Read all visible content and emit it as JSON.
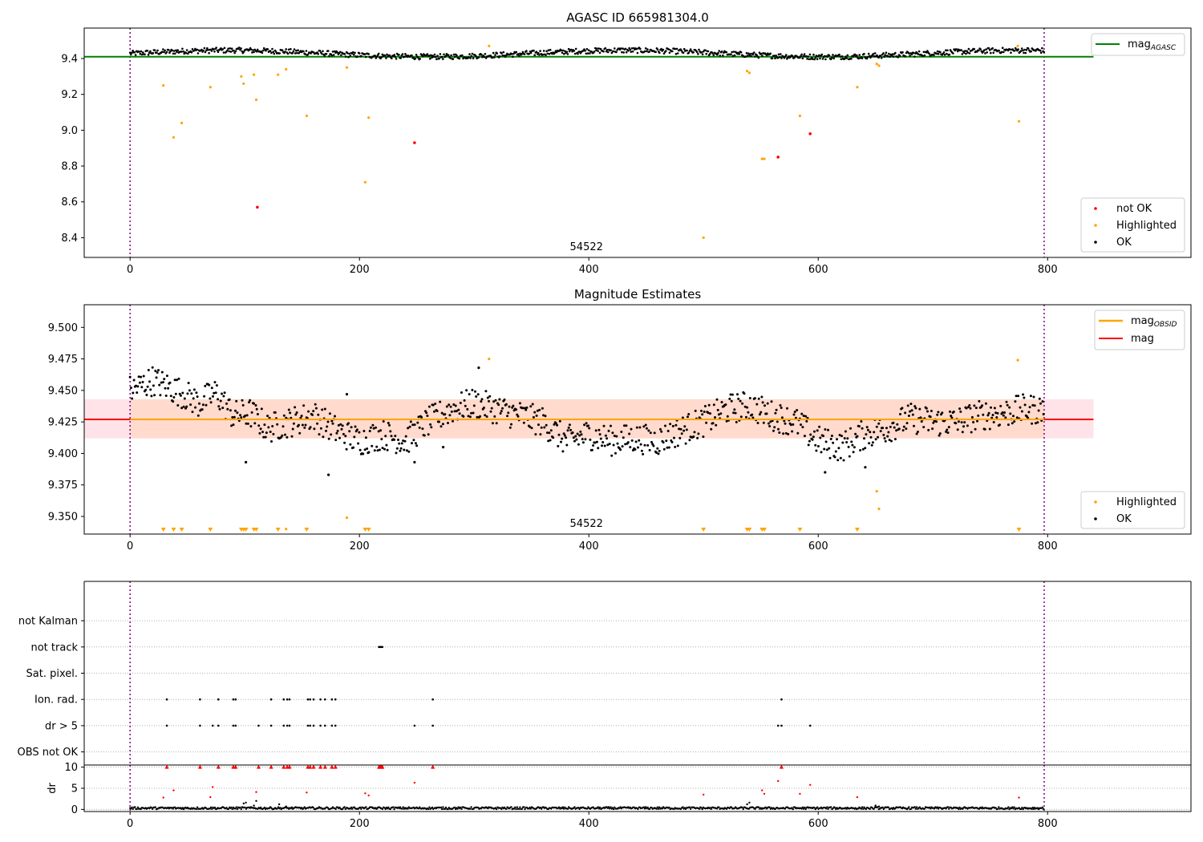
{
  "colors": {
    "ok": "#000000",
    "highlighted": "#ffa500",
    "not_ok": "#ff0000",
    "agasc_line": "#008000",
    "obsid_line": "#ffa500",
    "mag_line": "#ff0000",
    "mag_band_outer": "#ffc0cb",
    "mag_band_inner": "#ffd8c8",
    "obs_boundary": "#800080"
  },
  "chart_data": [
    {
      "type": "scatter",
      "title": "AGASC ID 665981304.0",
      "xlim": [
        -40,
        925
      ],
      "ylim": [
        8.29,
        9.57
      ],
      "xticks": [
        0,
        200,
        400,
        600,
        800
      ],
      "yticks": [
        8.4,
        8.6,
        8.8,
        9.0,
        9.2,
        9.4
      ],
      "ytick_labels": [
        "8.4",
        "8.6",
        "8.8",
        "9.0",
        "9.2",
        "9.4"
      ],
      "grid": false,
      "legend_top": {
        "position": "upper right",
        "entries": [
          {
            "label": "mag",
            "subscript": "AGASC",
            "kind": "line",
            "color": "#008000"
          }
        ]
      },
      "legend_bottom": {
        "position": "lower right",
        "entries": [
          {
            "label": "not OK",
            "kind": "dot",
            "color": "#ff0000"
          },
          {
            "label": "Highlighted",
            "kind": "dot",
            "color": "#ffa500"
          },
          {
            "label": "OK",
            "kind": "dot",
            "color": "#000000"
          }
        ]
      },
      "hlines": [
        {
          "name": "mag_AGASC",
          "y": 9.41,
          "x": [
            -40,
            840
          ],
          "color": "#008000"
        }
      ],
      "obsid_boundaries": [
        0,
        797
      ],
      "obsid_labels": [
        {
          "x": 400,
          "text": "54522"
        }
      ],
      "ok_band": {
        "x": [
          0,
          797
        ],
        "center": 9.428,
        "amplitude": 0.018
      },
      "highlighted_points": [
        [
          29,
          9.25
        ],
        [
          38,
          8.96
        ],
        [
          45,
          9.04
        ],
        [
          70,
          9.24
        ],
        [
          97,
          9.3
        ],
        [
          99,
          9.26
        ],
        [
          108,
          9.31
        ],
        [
          110,
          9.17
        ],
        [
          129,
          9.31
        ],
        [
          136,
          9.34
        ],
        [
          154,
          9.08
        ],
        [
          189,
          9.35
        ],
        [
          205,
          8.71
        ],
        [
          208,
          9.07
        ],
        [
          313,
          9.47
        ],
        [
          500,
          8.4
        ],
        [
          538,
          9.33
        ],
        [
          540,
          9.32
        ],
        [
          551,
          8.84
        ],
        [
          553,
          8.84
        ],
        [
          584,
          9.08
        ],
        [
          634,
          9.24
        ],
        [
          651,
          9.37
        ],
        [
          653,
          9.36
        ],
        [
          774,
          9.47
        ],
        [
          775,
          9.05
        ]
      ],
      "not_ok_points": [
        [
          111,
          8.57
        ],
        [
          248,
          8.93
        ],
        [
          565,
          8.85
        ],
        [
          593,
          8.98
        ]
      ]
    },
    {
      "type": "scatter",
      "title": "Magnitude Estimates",
      "xlim": [
        -40,
        925
      ],
      "ylim": [
        9.336,
        9.518
      ],
      "xticks": [
        0,
        200,
        400,
        600,
        800
      ],
      "yticks": [
        9.35,
        9.375,
        9.4,
        9.425,
        9.45,
        9.475,
        9.5
      ],
      "ytick_labels": [
        "9.350",
        "9.375",
        "9.400",
        "9.425",
        "9.450",
        "9.475",
        "9.500"
      ],
      "grid": false,
      "legend_top": {
        "position": "upper right",
        "entries": [
          {
            "label": "mag",
            "subscript": "OBSID",
            "kind": "line",
            "color": "#ffa500"
          },
          {
            "label": "mag",
            "subscript": "",
            "kind": "line",
            "color": "#ff0000"
          }
        ]
      },
      "legend_bottom": {
        "position": "lower right",
        "entries": [
          {
            "label": "Highlighted",
            "kind": "dot",
            "color": "#ffa500"
          },
          {
            "label": "OK",
            "kind": "dot",
            "color": "#000000"
          }
        ]
      },
      "hlines": [
        {
          "name": "mag",
          "y": 9.427,
          "x": [
            -40,
            840
          ],
          "color": "#ff0000"
        },
        {
          "name": "mag_OBSID",
          "y": 9.427,
          "x": [
            0,
            797
          ],
          "color": "#ffa500"
        }
      ],
      "bands": [
        {
          "name": "mag-range",
          "y": [
            9.412,
            9.443
          ],
          "x": [
            -40,
            840
          ],
          "color": "#ffc0cb"
        },
        {
          "name": "mag_OBSID-range",
          "y": [
            9.412,
            9.443
          ],
          "x": [
            0,
            797
          ],
          "color": "#ffd8c8"
        }
      ],
      "obsid_boundaries": [
        0,
        797
      ],
      "obsid_labels": [
        {
          "x": 400,
          "text": "54522"
        }
      ],
      "ok_segments": [
        [
          0,
          9.45
        ],
        [
          20,
          9.458
        ],
        [
          45,
          9.448
        ],
        [
          60,
          9.44
        ],
        [
          75,
          9.448
        ],
        [
          90,
          9.43
        ],
        [
          105,
          9.432
        ],
        [
          120,
          9.42
        ],
        [
          140,
          9.425
        ],
        [
          160,
          9.43
        ],
        [
          180,
          9.418
        ],
        [
          200,
          9.41
        ],
        [
          220,
          9.415
        ],
        [
          240,
          9.41
        ],
        [
          260,
          9.425
        ],
        [
          280,
          9.435
        ],
        [
          300,
          9.44
        ],
        [
          320,
          9.435
        ],
        [
          340,
          9.43
        ],
        [
          360,
          9.425
        ],
        [
          380,
          9.41
        ],
        [
          400,
          9.415
        ],
        [
          420,
          9.41
        ],
        [
          440,
          9.412
        ],
        [
          460,
          9.41
        ],
        [
          480,
          9.418
        ],
        [
          500,
          9.425
        ],
        [
          520,
          9.435
        ],
        [
          540,
          9.438
        ],
        [
          560,
          9.43
        ],
        [
          580,
          9.425
        ],
        [
          600,
          9.41
        ],
        [
          620,
          9.405
        ],
        [
          640,
          9.415
        ],
        [
          660,
          9.42
        ],
        [
          680,
          9.428
        ],
        [
          700,
          9.425
        ],
        [
          720,
          9.425
        ],
        [
          740,
          9.43
        ],
        [
          760,
          9.432
        ],
        [
          780,
          9.435
        ],
        [
          797,
          9.435
        ]
      ],
      "ok_spread": 0.012,
      "ok_outliers": [
        [
          101,
          9.393
        ],
        [
          173,
          9.383
        ],
        [
          189,
          9.447
        ],
        [
          248,
          9.393
        ],
        [
          273,
          9.405
        ],
        [
          304,
          9.468
        ],
        [
          606,
          9.385
        ],
        [
          641,
          9.389
        ]
      ],
      "highlighted_points": [
        [
          136,
          9.34
        ],
        [
          189,
          9.349
        ],
        [
          313,
          9.475
        ],
        [
          651,
          9.37
        ],
        [
          653,
          9.356
        ],
        [
          774,
          9.474
        ]
      ],
      "below_axis_markers": [
        29,
        38,
        45,
        70,
        97,
        99,
        101,
        108,
        110,
        129,
        154,
        205,
        208,
        500,
        538,
        540,
        551,
        553,
        584,
        634,
        775
      ]
    },
    {
      "type": "scatter",
      "title": "",
      "xlim": [
        -40,
        925
      ],
      "ylim": [
        -0.5,
        6.5
      ],
      "xticks": [
        0,
        200,
        400,
        600,
        800
      ],
      "categories": [
        "OBS not OK",
        "dr > 5",
        "Ion. rad.",
        "Sat. pixel.",
        "not track",
        "not Kalman"
      ],
      "grid": true,
      "obsid_boundaries": [
        0,
        797
      ],
      "flag_points": {
        "not track": [
          217,
          218,
          219,
          220
        ],
        "Ion. rad.": [
          32,
          61,
          77,
          90,
          92,
          123,
          134,
          137,
          139,
          155,
          157,
          160,
          166,
          170,
          176,
          179,
          264,
          568
        ],
        "dr > 5": [
          32,
          61,
          72,
          77,
          90,
          92,
          112,
          123,
          134,
          137,
          139,
          155,
          157,
          160,
          166,
          170,
          176,
          179,
          248,
          264,
          565,
          568,
          593
        ]
      }
    },
    {
      "type": "scatter",
      "title": "",
      "xlim": [
        -40,
        925
      ],
      "ylim": [
        -0.5,
        10.5
      ],
      "xticks": [
        0,
        200,
        400,
        600,
        800
      ],
      "xtick_labels": [
        "0",
        "200",
        "400",
        "600",
        "800"
      ],
      "yticks": [
        0,
        5,
        10
      ],
      "ylabel": "dr",
      "grid": true,
      "ok_segment": {
        "x": [
          0,
          797
        ],
        "center": 0.3,
        "amplitude": 0.25
      },
      "ok_extra_points": [
        [
          99,
          1.4
        ],
        [
          101,
          1.6
        ],
        [
          108,
          0.9
        ],
        [
          110,
          2.0
        ],
        [
          130,
          1.2
        ],
        [
          136,
          0.7
        ],
        [
          540,
          1.6
        ],
        [
          538,
          1.2
        ],
        [
          650,
          0.9
        ],
        [
          653,
          0.7
        ]
      ],
      "capped_points": [
        32,
        61,
        77,
        90,
        92,
        112,
        123,
        134,
        137,
        139,
        155,
        157,
        160,
        166,
        170,
        176,
        179,
        217,
        218,
        219,
        220,
        264,
        568
      ],
      "not_ok_points": [
        [
          29,
          2.8
        ],
        [
          38,
          4.5
        ],
        [
          70,
          2.9
        ],
        [
          72,
          5.3
        ],
        [
          110,
          4.1
        ],
        [
          154,
          4.0
        ],
        [
          205,
          3.8
        ],
        [
          208,
          3.3
        ],
        [
          248,
          6.3
        ],
        [
          500,
          3.5
        ],
        [
          551,
          4.5
        ],
        [
          553,
          3.7
        ],
        [
          565,
          6.7
        ],
        [
          584,
          3.7
        ],
        [
          593,
          5.8
        ],
        [
          634,
          2.9
        ],
        [
          775,
          2.8
        ]
      ]
    }
  ]
}
